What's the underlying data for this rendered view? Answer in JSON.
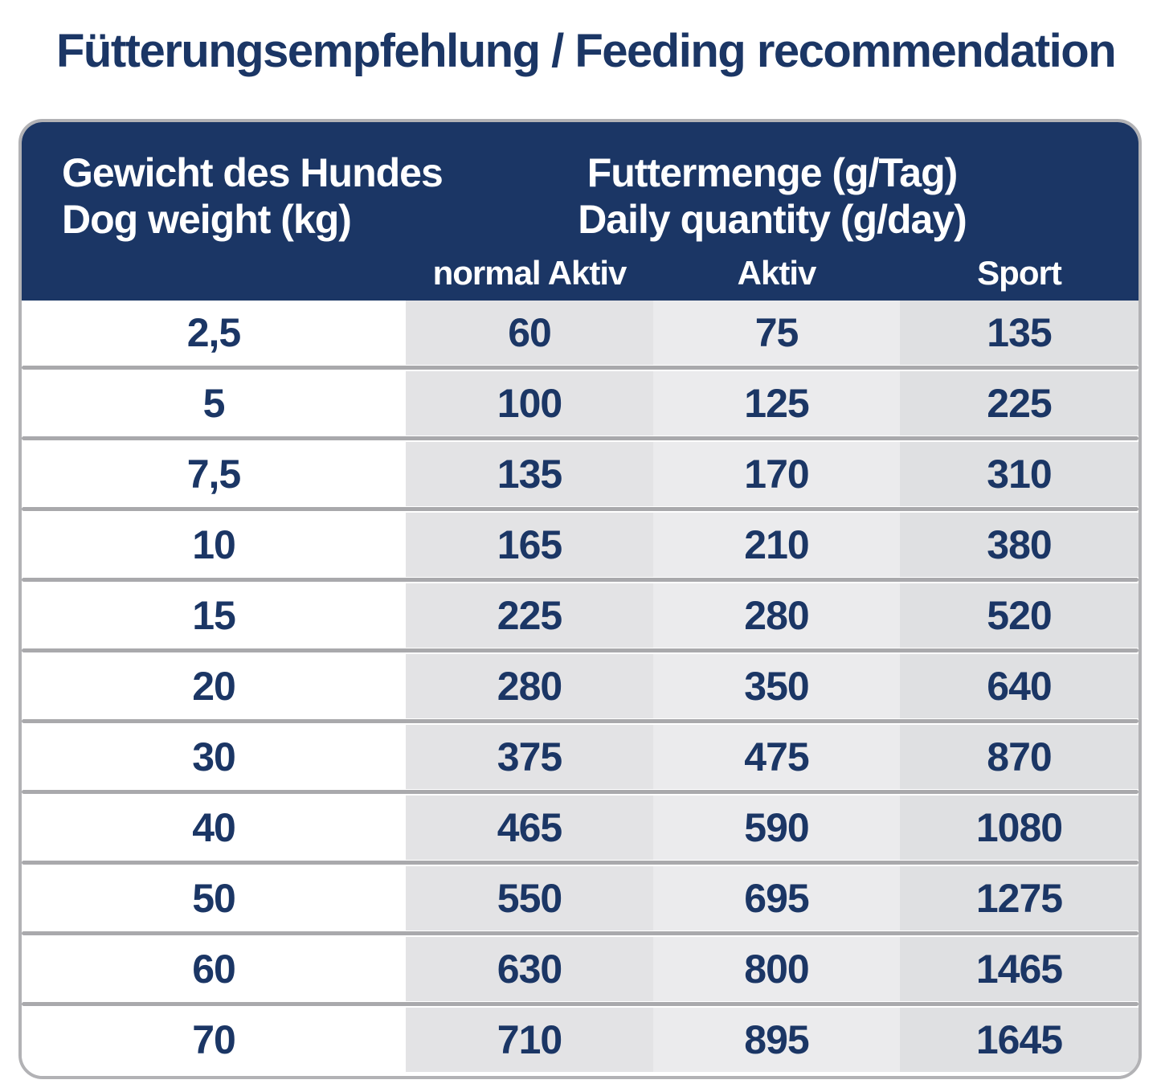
{
  "title": "Fütterungsempfehlung / Feeding recommendation",
  "colors": {
    "navy": "#1b3665",
    "header_text": "#ffffff",
    "border_gray": "#b2b2b5",
    "separator_gray": "#a9a9ac",
    "col_weight_bg": "#ffffff",
    "col_normal_aktiv_bg": "#e3e3e5",
    "col_aktiv_bg": "#ebebed",
    "col_sport_bg": "#dfe0e2"
  },
  "table": {
    "header": {
      "weight_label_de": "Gewicht des Hundes",
      "weight_label_en": "Dog weight (kg)",
      "quantity_label_de": "Futtermenge (g/Tag)",
      "quantity_label_en": "Daily quantity (g/day)",
      "columns": [
        "normal Aktiv",
        "Aktiv",
        "Sport"
      ]
    },
    "rows": [
      {
        "weight": "2,5",
        "normal_aktiv": "60",
        "aktiv": "75",
        "sport": "135"
      },
      {
        "weight": "5",
        "normal_aktiv": "100",
        "aktiv": "125",
        "sport": "225"
      },
      {
        "weight": "7,5",
        "normal_aktiv": "135",
        "aktiv": "170",
        "sport": "310"
      },
      {
        "weight": "10",
        "normal_aktiv": "165",
        "aktiv": "210",
        "sport": "380"
      },
      {
        "weight": "15",
        "normal_aktiv": "225",
        "aktiv": "280",
        "sport": "520"
      },
      {
        "weight": "20",
        "normal_aktiv": "280",
        "aktiv": "350",
        "sport": "640"
      },
      {
        "weight": "30",
        "normal_aktiv": "375",
        "aktiv": "475",
        "sport": "870"
      },
      {
        "weight": "40",
        "normal_aktiv": "465",
        "aktiv": "590",
        "sport": "1080"
      },
      {
        "weight": "50",
        "normal_aktiv": "550",
        "aktiv": "695",
        "sport": "1275"
      },
      {
        "weight": "60",
        "normal_aktiv": "630",
        "aktiv": "800",
        "sport": "1465"
      },
      {
        "weight": "70",
        "normal_aktiv": "710",
        "aktiv": "895",
        "sport": "1645"
      }
    ]
  },
  "chart_data": {
    "type": "table",
    "title": "Fütterungsempfehlung / Feeding recommendation",
    "columns": [
      "Gewicht des Hundes / Dog weight (kg)",
      "normal Aktiv (g/Tag)",
      "Aktiv (g/Tag)",
      "Sport (g/Tag)"
    ],
    "rows": [
      [
        "2,5",
        60,
        75,
        135
      ],
      [
        "5",
        100,
        125,
        225
      ],
      [
        "7,5",
        135,
        170,
        310
      ],
      [
        "10",
        165,
        210,
        380
      ],
      [
        "15",
        225,
        280,
        520
      ],
      [
        "20",
        280,
        350,
        640
      ],
      [
        "30",
        375,
        475,
        870
      ],
      [
        "40",
        465,
        590,
        1080
      ],
      [
        "50",
        550,
        695,
        1275
      ],
      [
        "60",
        630,
        800,
        1465
      ],
      [
        "70",
        710,
        895,
        1645
      ]
    ]
  }
}
